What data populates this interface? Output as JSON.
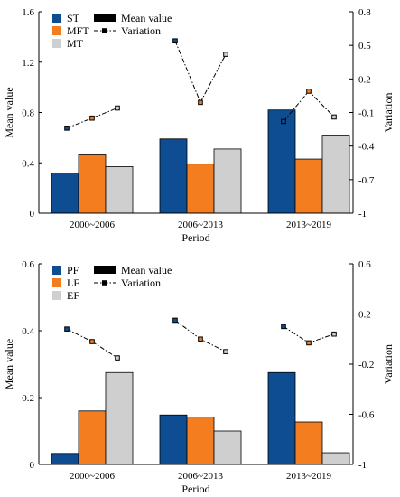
{
  "chart_data": [
    {
      "type": "bar",
      "categories": [
        "2000~2006",
        "2006~2013",
        "2013~2019"
      ],
      "xlabel": "Period",
      "ylabel": "Mean value",
      "ylabel_right": "Variation",
      "ylim": [
        0,
        1.6
      ],
      "yticks": [
        "0",
        "0.4",
        "0.8",
        "1.2",
        "1.6"
      ],
      "ylim_right": [
        -1,
        0.8
      ],
      "yticks_right": [
        "-1",
        "-0.7",
        "-0.4",
        "-0.1",
        "0.2",
        "0.5",
        "0.8"
      ],
      "legend": {
        "mean_label": "Mean value",
        "variation_label": "Variation",
        "placement": "top-left"
      },
      "series": [
        {
          "name": "ST",
          "color": "#0e4d92",
          "values": [
            0.32,
            0.59,
            0.82
          ]
        },
        {
          "name": "MFT",
          "color": "#f47d20",
          "values": [
            0.47,
            0.39,
            0.43
          ]
        },
        {
          "name": "MT",
          "color": "#cfcfcf",
          "values": [
            0.37,
            0.51,
            0.62
          ]
        }
      ],
      "variation": [
        [
          -0.24,
          -0.15,
          -0.06
        ],
        [
          0.54,
          -0.01,
          0.42
        ],
        [
          -0.18,
          0.09,
          -0.14
        ]
      ]
    },
    {
      "type": "bar",
      "categories": [
        "2000~2006",
        "2006~2013",
        "2013~2019"
      ],
      "xlabel": "Period",
      "ylabel": "Mean value",
      "ylabel_right": "Variation",
      "ylim": [
        0,
        0.6
      ],
      "yticks": [
        "0",
        "0.2",
        "0.4",
        "0.6"
      ],
      "ylim_right": [
        -1,
        0.6
      ],
      "yticks_right": [
        "-1",
        "-0.6",
        "-0.2",
        "0.2",
        "0.6"
      ],
      "legend": {
        "mean_label": "Mean value",
        "variation_label": "Variation",
        "placement": "top-left"
      },
      "series": [
        {
          "name": "PF",
          "color": "#0e4d92",
          "values": [
            0.033,
            0.148,
            0.275
          ]
        },
        {
          "name": "LF",
          "color": "#f47d20",
          "values": [
            0.16,
            0.142,
            0.127
          ]
        },
        {
          "name": "EF",
          "color": "#cfcfcf",
          "values": [
            0.275,
            0.1,
            0.035
          ]
        }
      ],
      "variation": [
        [
          0.08,
          -0.02,
          -0.15
        ],
        [
          0.15,
          0.0,
          -0.1
        ],
        [
          0.1,
          -0.03,
          0.04
        ]
      ]
    }
  ]
}
